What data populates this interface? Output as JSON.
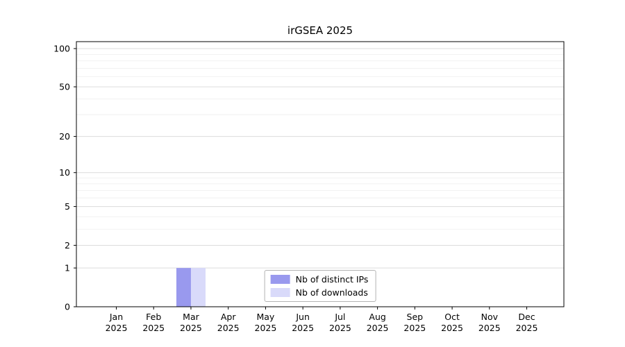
{
  "chart_data": {
    "type": "bar",
    "title": "irGSEA 2025",
    "categories": [
      "Jan 2025",
      "Feb 2025",
      "Mar 2025",
      "Apr 2025",
      "May 2025",
      "Jun 2025",
      "Jul 2025",
      "Aug 2025",
      "Sep 2025",
      "Oct 2025",
      "Nov 2025",
      "Dec 2025"
    ],
    "series": [
      {
        "name": "Nb of distinct IPs",
        "color": "#9999ee",
        "values": [
          0,
          0,
          1,
          0,
          0,
          0,
          0,
          0,
          0,
          0,
          0,
          0
        ]
      },
      {
        "name": "Nb of downloads",
        "color": "#d9dafa",
        "values": [
          0,
          0,
          1,
          0,
          0,
          0,
          0,
          0,
          0,
          0,
          0,
          0
        ]
      }
    ],
    "y_axis": {
      "scale": "log1p",
      "ticks": [
        0,
        1,
        2,
        5,
        10,
        20,
        50,
        100
      ],
      "minor": [
        3,
        4,
        6,
        7,
        8,
        9,
        30,
        40,
        60,
        70,
        80,
        90
      ],
      "max": 100
    },
    "grid": true,
    "legend_position": "bottom-center-inside"
  }
}
